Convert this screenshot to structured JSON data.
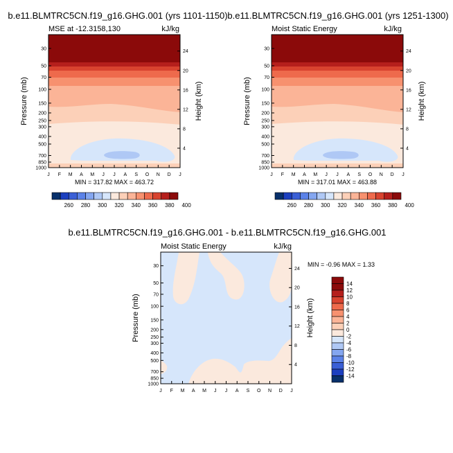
{
  "chart_data": [
    {
      "type": "heatmap",
      "title": "b.e11.BLMTRC5CN.f19_g16.GHG.001 (yrs 1101-1150)",
      "subtitle_left": "MSE at -12.3158,130",
      "subtitle_right": "kJ/kg",
      "ylabel": "Pressure (mb)",
      "ylabel_right": "Height (km)",
      "x_ticks": [
        "J",
        "F",
        "M",
        "A",
        "M",
        "J",
        "J",
        "A",
        "S",
        "O",
        "N",
        "D",
        "J"
      ],
      "y_ticks": [
        "30",
        "50",
        "70",
        "100",
        "150",
        "200",
        "250",
        "300",
        "400",
        "500",
        "700",
        "850",
        "1000"
      ],
      "y_right_ticks": [
        "24",
        "20",
        "16",
        "12",
        "8",
        "4"
      ],
      "stats": "MIN = 317.82 MAX = 463.72",
      "colorbar_labels": [
        "260",
        "280",
        "300",
        "320",
        "340",
        "360",
        "380",
        "400"
      ]
    },
    {
      "type": "heatmap",
      "title": "b.e11.BLMTRC5CN.f19_g16.GHG.001 (yrs 1251-1300)",
      "subtitle_left": "Moist Static Energy",
      "subtitle_right": "kJ/kg",
      "ylabel": "Pressure (mb)",
      "ylabel_right": "Height (km)",
      "x_ticks": [
        "J",
        "F",
        "M",
        "A",
        "M",
        "J",
        "J",
        "A",
        "S",
        "O",
        "N",
        "D",
        "J"
      ],
      "y_ticks": [
        "30",
        "50",
        "70",
        "100",
        "150",
        "200",
        "250",
        "300",
        "400",
        "500",
        "700",
        "850",
        "1000"
      ],
      "y_right_ticks": [
        "24",
        "20",
        "16",
        "12",
        "8",
        "4"
      ],
      "stats": "MIN = 317.01 MAX = 463.88",
      "colorbar_labels": [
        "260",
        "280",
        "300",
        "320",
        "340",
        "360",
        "380",
        "400"
      ]
    },
    {
      "type": "heatmap",
      "title": "b.e11.BLMTRC5CN.f19_g16.GHG.001 - b.e11.BLMTRC5CN.f19_g16.GHG.001",
      "subtitle_left": "Moist Static Energy",
      "subtitle_right": "kJ/kg",
      "ylabel": "Pressure (mb)",
      "ylabel_right": "Height (km)",
      "x_ticks": [
        "J",
        "F",
        "M",
        "A",
        "M",
        "J",
        "J",
        "A",
        "S",
        "O",
        "N",
        "D",
        "J"
      ],
      "y_ticks": [
        "30",
        "50",
        "70",
        "100",
        "150",
        "200",
        "250",
        "300",
        "400",
        "500",
        "700",
        "850",
        "1000"
      ],
      "y_right_ticks": [
        "24",
        "20",
        "16",
        "12",
        "8",
        "4"
      ],
      "stats": "MIN = -0.96 MAX =  1.33",
      "colorbar_labels": [
        "14",
        "12",
        "10",
        "8",
        "6",
        "4",
        "2",
        "0",
        "-2",
        "-4",
        "-6",
        "-8",
        "-10",
        "-12",
        "-14"
      ]
    }
  ],
  "colors": {
    "mse_scale": [
      "#08306b",
      "#1c3fbf",
      "#3a5fd6",
      "#5b82e8",
      "#84a6f0",
      "#afc8f5",
      "#d6e6fb",
      "#fbe9dd",
      "#fcd0b8",
      "#fbb497",
      "#f7916f",
      "#ee6a4c",
      "#d8432f",
      "#b51f1c",
      "#8b0a0a"
    ],
    "diff_scale": [
      "#8b0a0a",
      "#b51f1c",
      "#d8432f",
      "#ee6a4c",
      "#f7916f",
      "#fbb497",
      "#fcd0b8",
      "#fbe9dd",
      "#d6e6fb",
      "#afc8f5",
      "#84a6f0",
      "#5b82e8",
      "#3a5fd6",
      "#1c3fbf",
      "#08306b"
    ]
  }
}
